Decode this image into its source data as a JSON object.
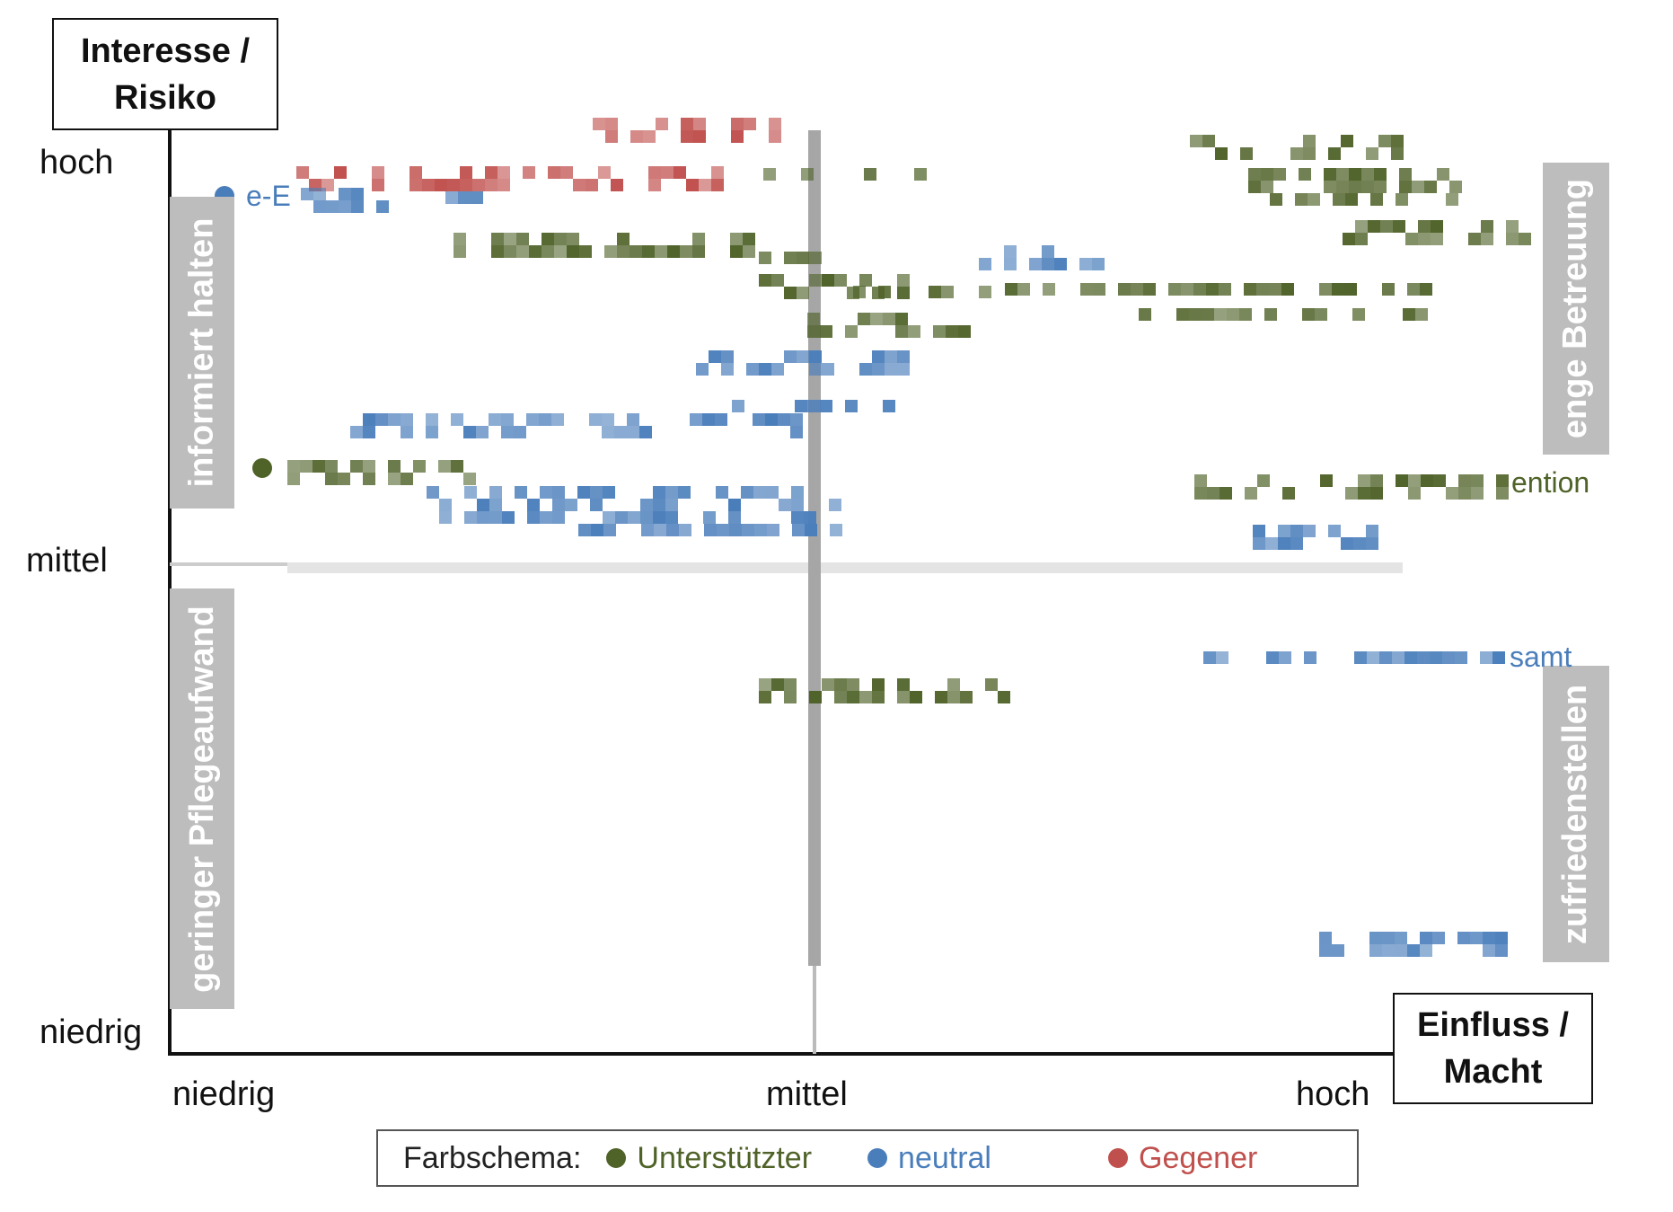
{
  "y_axis": {
    "title_line1": "Interesse /",
    "title_line2": "Risiko",
    "ticks": [
      "hoch",
      "mittel",
      "niedrig"
    ]
  },
  "x_axis": {
    "title_line1": "Einfluss /",
    "title_line2": "Macht",
    "ticks": [
      "niedrig",
      "mittel",
      "hoch"
    ]
  },
  "quadrants": {
    "top_left": "informiert halten",
    "bottom_left": "geringer Pflegeaufwand",
    "top_right": "enge Betreuung",
    "bottom_right": "zufriedenstellen"
  },
  "legend": {
    "title": "Farbschema:",
    "items": [
      {
        "label": "Unterstützter",
        "color": "#4f6228"
      },
      {
        "label": "neutral",
        "color": "#4a7ebb"
      },
      {
        "label": "Gegener",
        "color": "#c0504d"
      }
    ]
  },
  "stakeholder_fragments": [
    {
      "text": "e-E",
      "group": "neutral"
    },
    {
      "text": "ention",
      "group": "Unterstützter"
    },
    {
      "text": "samt",
      "group": "neutral"
    }
  ],
  "colors": {
    "supporter": "#4f6228",
    "neutral": "#4a7ebb",
    "opponent": "#c0504d",
    "quadrant_box": "#bdbdbd",
    "divider": "#a6a6a6",
    "midline": "#e0e0e0"
  }
}
